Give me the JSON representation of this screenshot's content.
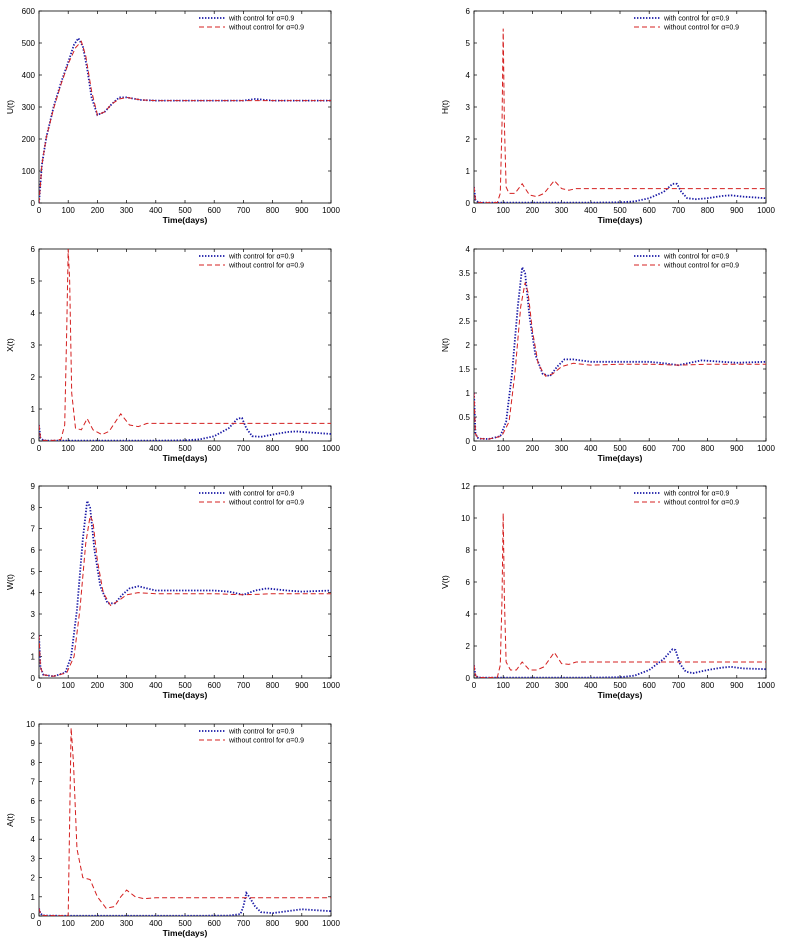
{
  "figure": {
    "legend_entries": [
      "with control for α=0.9",
      "without control for α=0.9"
    ],
    "colors": {
      "with_control": "#1a1aa6",
      "without_control": "#d42020",
      "axes": "#000000"
    }
  },
  "chart_data": [
    {
      "type": "line",
      "xlabel": "Time(days)",
      "ylabel": "U(t)",
      "xlim": [
        0,
        1000
      ],
      "ylim": [
        0,
        600
      ],
      "xticks": [
        0,
        100,
        200,
        300,
        400,
        500,
        600,
        700,
        800,
        900,
        1000
      ],
      "yticks": [
        0,
        100,
        200,
        300,
        400,
        500,
        600
      ],
      "legend": "top-right",
      "grid": false,
      "series": [
        {
          "name": "with control for α=0.9",
          "style": "dotted",
          "x": [
            0,
            10,
            25,
            50,
            75,
            100,
            120,
            135,
            150,
            165,
            180,
            200,
            225,
            250,
            275,
            300,
            350,
            400,
            500,
            600,
            700,
            740,
            800,
            900,
            1000
          ],
          "y": [
            0,
            120,
            205,
            300,
            375,
            440,
            495,
            515,
            490,
            420,
            330,
            275,
            285,
            310,
            330,
            330,
            322,
            320,
            320,
            320,
            320,
            325,
            320,
            320,
            320
          ]
        },
        {
          "name": "without control for α=0.9",
          "style": "dashed",
          "x": [
            0,
            10,
            25,
            50,
            75,
            100,
            125,
            145,
            160,
            180,
            200,
            225,
            250,
            275,
            300,
            350,
            400,
            500,
            600,
            700,
            800,
            900,
            1000
          ],
          "y": [
            0,
            120,
            205,
            295,
            370,
            435,
            485,
            505,
            460,
            350,
            275,
            285,
            310,
            325,
            330,
            322,
            320,
            320,
            320,
            320,
            320,
            320,
            320
          ]
        }
      ]
    },
    {
      "type": "line",
      "xlabel": "Time(days)",
      "ylabel": "H(t)",
      "xlim": [
        0,
        1000
      ],
      "ylim": [
        0,
        6
      ],
      "xticks": [
        0,
        100,
        200,
        300,
        400,
        500,
        600,
        700,
        800,
        900,
        1000
      ],
      "yticks": [
        0,
        1,
        2,
        3,
        4,
        5,
        6
      ],
      "legend": "top-right",
      "grid": false,
      "series": [
        {
          "name": "with control for α=0.9",
          "style": "dotted",
          "x": [
            0,
            5,
            15,
            30,
            100,
            200,
            300,
            400,
            500,
            550,
            600,
            650,
            680,
            695,
            710,
            730,
            760,
            800,
            850,
            880,
            920,
            1000
          ],
          "y": [
            0.5,
            0.1,
            0.02,
            0.01,
            0.01,
            0.01,
            0.01,
            0.01,
            0.02,
            0.05,
            0.15,
            0.35,
            0.6,
            0.6,
            0.35,
            0.15,
            0.12,
            0.15,
            0.22,
            0.24,
            0.2,
            0.15
          ]
        },
        {
          "name": "without control for α=0.9",
          "style": "dashed",
          "x": [
            0,
            5,
            15,
            50,
            80,
            90,
            96,
            100,
            104,
            110,
            120,
            140,
            165,
            190,
            215,
            240,
            275,
            300,
            325,
            350,
            400,
            500,
            600,
            700,
            800,
            900,
            1000
          ],
          "y": [
            0.5,
            0.1,
            0.02,
            0.01,
            0.02,
            0.3,
            2.5,
            5.45,
            2.5,
            0.5,
            0.3,
            0.3,
            0.6,
            0.25,
            0.2,
            0.3,
            0.7,
            0.45,
            0.4,
            0.45,
            0.45,
            0.45,
            0.45,
            0.45,
            0.45,
            0.45,
            0.45
          ]
        }
      ]
    },
    {
      "type": "line",
      "xlabel": "Time(days)",
      "ylabel": "X(t)",
      "xlim": [
        0,
        1000
      ],
      "ylim": [
        0,
        6
      ],
      "xticks": [
        0,
        100,
        200,
        300,
        400,
        500,
        600,
        700,
        800,
        900,
        1000
      ],
      "yticks": [
        0,
        1,
        2,
        3,
        4,
        5,
        6
      ],
      "legend": "top-right",
      "grid": false,
      "series": [
        {
          "name": "with control for α=0.9",
          "style": "dotted",
          "x": [
            0,
            5,
            15,
            30,
            100,
            200,
            300,
            400,
            500,
            550,
            600,
            650,
            680,
            695,
            710,
            730,
            760,
            800,
            850,
            880,
            920,
            1000
          ],
          "y": [
            0.5,
            0.1,
            0.02,
            0.01,
            0.01,
            0.01,
            0.01,
            0.01,
            0.02,
            0.05,
            0.15,
            0.4,
            0.7,
            0.72,
            0.4,
            0.15,
            0.13,
            0.2,
            0.28,
            0.3,
            0.27,
            0.22
          ]
        },
        {
          "name": "without control for α=0.9",
          "style": "dashed",
          "x": [
            0,
            5,
            15,
            50,
            75,
            88,
            95,
            100,
            105,
            112,
            125,
            145,
            165,
            185,
            215,
            240,
            280,
            310,
            340,
            370,
            400,
            500,
            600,
            700,
            800,
            900,
            1000
          ],
          "y": [
            0.5,
            0.1,
            0.02,
            0.02,
            0.05,
            0.5,
            3.5,
            6.0,
            5.0,
            1.5,
            0.4,
            0.35,
            0.7,
            0.35,
            0.2,
            0.3,
            0.85,
            0.5,
            0.45,
            0.55,
            0.55,
            0.55,
            0.55,
            0.55,
            0.55,
            0.55,
            0.55
          ]
        }
      ]
    },
    {
      "type": "line",
      "xlabel": "Time(days)",
      "ylabel": "N(t)",
      "xlim": [
        0,
        1000
      ],
      "ylim": [
        0,
        4
      ],
      "xticks": [
        0,
        100,
        200,
        300,
        400,
        500,
        600,
        700,
        800,
        900,
        1000
      ],
      "yticks": [
        0,
        0.5,
        1,
        1.5,
        2,
        2.5,
        3,
        3.5,
        4
      ],
      "legend": "top-right",
      "grid": false,
      "series": [
        {
          "name": "with control for α=0.9",
          "style": "dotted",
          "x": [
            0,
            5,
            15,
            50,
            90,
            110,
            130,
            150,
            165,
            175,
            190,
            210,
            235,
            260,
            285,
            310,
            340,
            400,
            500,
            600,
            650,
            700,
            740,
            780,
            850,
            900,
            1000
          ],
          "y": [
            1.0,
            0.15,
            0.05,
            0.04,
            0.1,
            0.4,
            1.4,
            2.8,
            3.62,
            3.5,
            2.6,
            1.8,
            1.4,
            1.35,
            1.55,
            1.7,
            1.7,
            1.65,
            1.65,
            1.65,
            1.62,
            1.58,
            1.63,
            1.68,
            1.65,
            1.63,
            1.65
          ]
        },
        {
          "name": "without control for α=0.9",
          "style": "dashed",
          "x": [
            0,
            5,
            15,
            50,
            95,
            120,
            140,
            160,
            175,
            185,
            200,
            220,
            245,
            270,
            300,
            340,
            400,
            500,
            600,
            700,
            800,
            900,
            1000
          ],
          "y": [
            1.0,
            0.15,
            0.05,
            0.04,
            0.1,
            0.4,
            1.4,
            2.8,
            3.3,
            3.1,
            2.3,
            1.6,
            1.35,
            1.4,
            1.55,
            1.62,
            1.58,
            1.6,
            1.6,
            1.58,
            1.6,
            1.6,
            1.6
          ]
        }
      ]
    },
    {
      "type": "line",
      "xlabel": "Time(days)",
      "ylabel": "W(t)",
      "xlim": [
        0,
        1000
      ],
      "ylim": [
        0,
        9
      ],
      "xticks": [
        0,
        100,
        200,
        300,
        400,
        500,
        600,
        700,
        800,
        900,
        1000
      ],
      "yticks": [
        0,
        1,
        2,
        3,
        4,
        5,
        6,
        7,
        8,
        9
      ],
      "legend": "top-right",
      "grid": false,
      "series": [
        {
          "name": "with control for α=0.9",
          "style": "dotted",
          "x": [
            0,
            5,
            15,
            50,
            90,
            110,
            130,
            150,
            165,
            175,
            190,
            210,
            235,
            260,
            285,
            310,
            340,
            400,
            500,
            600,
            650,
            700,
            740,
            780,
            850,
            900,
            1000
          ],
          "y": [
            2.0,
            0.5,
            0.15,
            0.08,
            0.25,
            1.0,
            3.2,
            6.5,
            8.3,
            8.0,
            6.0,
            4.3,
            3.5,
            3.5,
            3.9,
            4.2,
            4.3,
            4.1,
            4.1,
            4.1,
            4.05,
            3.9,
            4.1,
            4.2,
            4.1,
            4.05,
            4.1
          ]
        },
        {
          "name": "without control for α=0.9",
          "style": "dashed",
          "x": [
            0,
            5,
            15,
            50,
            95,
            120,
            140,
            160,
            175,
            185,
            200,
            220,
            245,
            270,
            300,
            340,
            400,
            500,
            600,
            700,
            800,
            900,
            1000
          ],
          "y": [
            2.0,
            0.5,
            0.15,
            0.08,
            0.25,
            1.0,
            3.2,
            6.3,
            7.6,
            7.3,
            5.5,
            4.0,
            3.4,
            3.6,
            3.9,
            4.0,
            3.95,
            3.95,
            3.95,
            3.9,
            3.95,
            3.95,
            3.95
          ]
        }
      ]
    },
    {
      "type": "line",
      "xlabel": "Time(days)",
      "ylabel": "V(t)",
      "xlim": [
        0,
        1000
      ],
      "ylim": [
        0,
        12
      ],
      "xticks": [
        0,
        100,
        200,
        300,
        400,
        500,
        600,
        700,
        800,
        900,
        1000
      ],
      "yticks": [
        0,
        2,
        4,
        6,
        8,
        10,
        12
      ],
      "legend": "top-right",
      "grid": false,
      "series": [
        {
          "name": "with control for α=0.9",
          "style": "dotted",
          "x": [
            0,
            5,
            15,
            30,
            100,
            200,
            300,
            400,
            500,
            550,
            600,
            650,
            680,
            690,
            705,
            725,
            750,
            800,
            850,
            880,
            920,
            1000
          ],
          "y": [
            0.8,
            0.15,
            0.03,
            0.02,
            0.02,
            0.02,
            0.02,
            0.02,
            0.05,
            0.15,
            0.5,
            1.2,
            1.8,
            1.75,
            0.9,
            0.4,
            0.3,
            0.5,
            0.65,
            0.7,
            0.6,
            0.55
          ]
        },
        {
          "name": "without control for α=0.9",
          "style": "dashed",
          "x": [
            0,
            5,
            15,
            50,
            80,
            90,
            96,
            100,
            104,
            110,
            125,
            145,
            165,
            190,
            215,
            240,
            275,
            300,
            325,
            350,
            400,
            500,
            600,
            700,
            800,
            900,
            1000
          ],
          "y": [
            0.8,
            0.15,
            0.03,
            0.02,
            0.05,
            0.8,
            5.0,
            10.3,
            5.0,
            1.0,
            0.5,
            0.5,
            1.0,
            0.5,
            0.5,
            0.7,
            1.6,
            0.9,
            0.85,
            1.0,
            1.0,
            1.0,
            1.0,
            1.0,
            1.0,
            1.0,
            1.0
          ]
        }
      ]
    },
    {
      "type": "line",
      "xlabel": "Time(days)",
      "ylabel": "A(t)",
      "xlim": [
        0,
        1000
      ],
      "ylim": [
        0,
        10
      ],
      "xticks": [
        0,
        100,
        200,
        300,
        400,
        500,
        600,
        700,
        800,
        900,
        1000
      ],
      "yticks": [
        0,
        1,
        2,
        3,
        4,
        5,
        6,
        7,
        8,
        9,
        10
      ],
      "legend": "top-right",
      "grid": false,
      "series": [
        {
          "name": "with control for α=0.9",
          "style": "dotted",
          "x": [
            0,
            5,
            15,
            30,
            100,
            300,
            500,
            650,
            690,
            700,
            710,
            720,
            740,
            760,
            800,
            850,
            900,
            950,
            1000
          ],
          "y": [
            0.4,
            0.12,
            0.03,
            0.02,
            0.01,
            0.01,
            0.01,
            0.02,
            0.1,
            0.5,
            1.2,
            1.0,
            0.5,
            0.2,
            0.15,
            0.25,
            0.35,
            0.3,
            0.25
          ]
        },
        {
          "name": "without control for α=0.9",
          "style": "dashed",
          "x": [
            0,
            5,
            15,
            50,
            90,
            100,
            104,
            110,
            118,
            130,
            150,
            175,
            200,
            230,
            260,
            280,
            300,
            330,
            360,
            400,
            500,
            600,
            700,
            800,
            900,
            1000
          ],
          "y": [
            0.4,
            0.12,
            0.03,
            0.02,
            0.02,
            0.02,
            4.0,
            9.8,
            8.0,
            3.5,
            2.0,
            1.9,
            1.0,
            0.4,
            0.5,
            1.0,
            1.35,
            1.0,
            0.9,
            0.95,
            0.95,
            0.95,
            0.95,
            0.95,
            0.95,
            0.95
          ]
        }
      ]
    }
  ]
}
